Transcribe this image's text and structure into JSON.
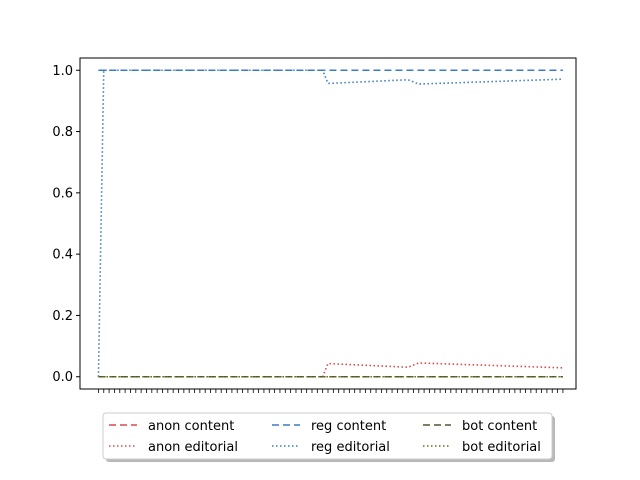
{
  "chart_data": {
    "type": "line",
    "title": "",
    "xlabel": "",
    "ylabel": "",
    "ylim": [
      -0.04,
      1.04
    ],
    "yticks": [
      "0.0",
      "0.2",
      "0.4",
      "0.6",
      "0.8",
      "1.0"
    ],
    "x_tick_count": 88,
    "xlim": [
      -3.45,
      89.45
    ],
    "grid": false,
    "legend": {
      "placement": "below",
      "columns": 3
    },
    "series": [
      {
        "name": "anon content",
        "color": "#d94a4a",
        "dash": "dashed",
        "points": [
          [
            0,
            0.0
          ],
          [
            87,
            0.0
          ]
        ]
      },
      {
        "name": "anon editorial",
        "color": "#d94a4a",
        "dash": "dotted",
        "points": [
          [
            0,
            0.0
          ],
          [
            42,
            0.0
          ],
          [
            43,
            0.043
          ],
          [
            58,
            0.031
          ],
          [
            60,
            0.045
          ],
          [
            87,
            0.029
          ]
        ]
      },
      {
        "name": "reg content",
        "color": "#3b7dc4",
        "dash": "dashed",
        "points": [
          [
            0,
            1.0
          ],
          [
            87,
            1.0
          ]
        ]
      },
      {
        "name": "reg editorial",
        "color": "#3b7dc4",
        "dash": "dotted",
        "points": [
          [
            0,
            0.0
          ],
          [
            1,
            1.0
          ],
          [
            42,
            1.0
          ],
          [
            43,
            0.957
          ],
          [
            58,
            0.969
          ],
          [
            60,
            0.955
          ],
          [
            87,
            0.971
          ]
        ]
      },
      {
        "name": "bot content",
        "color": "#4d5a2a",
        "dash": "dashed",
        "points": [
          [
            0,
            0.0
          ],
          [
            87,
            0.0
          ]
        ]
      },
      {
        "name": "bot editorial",
        "color": "#6b6a1f",
        "dash": "dotted",
        "points": [
          [
            0,
            0.0
          ],
          [
            87,
            0.0
          ]
        ]
      }
    ]
  }
}
